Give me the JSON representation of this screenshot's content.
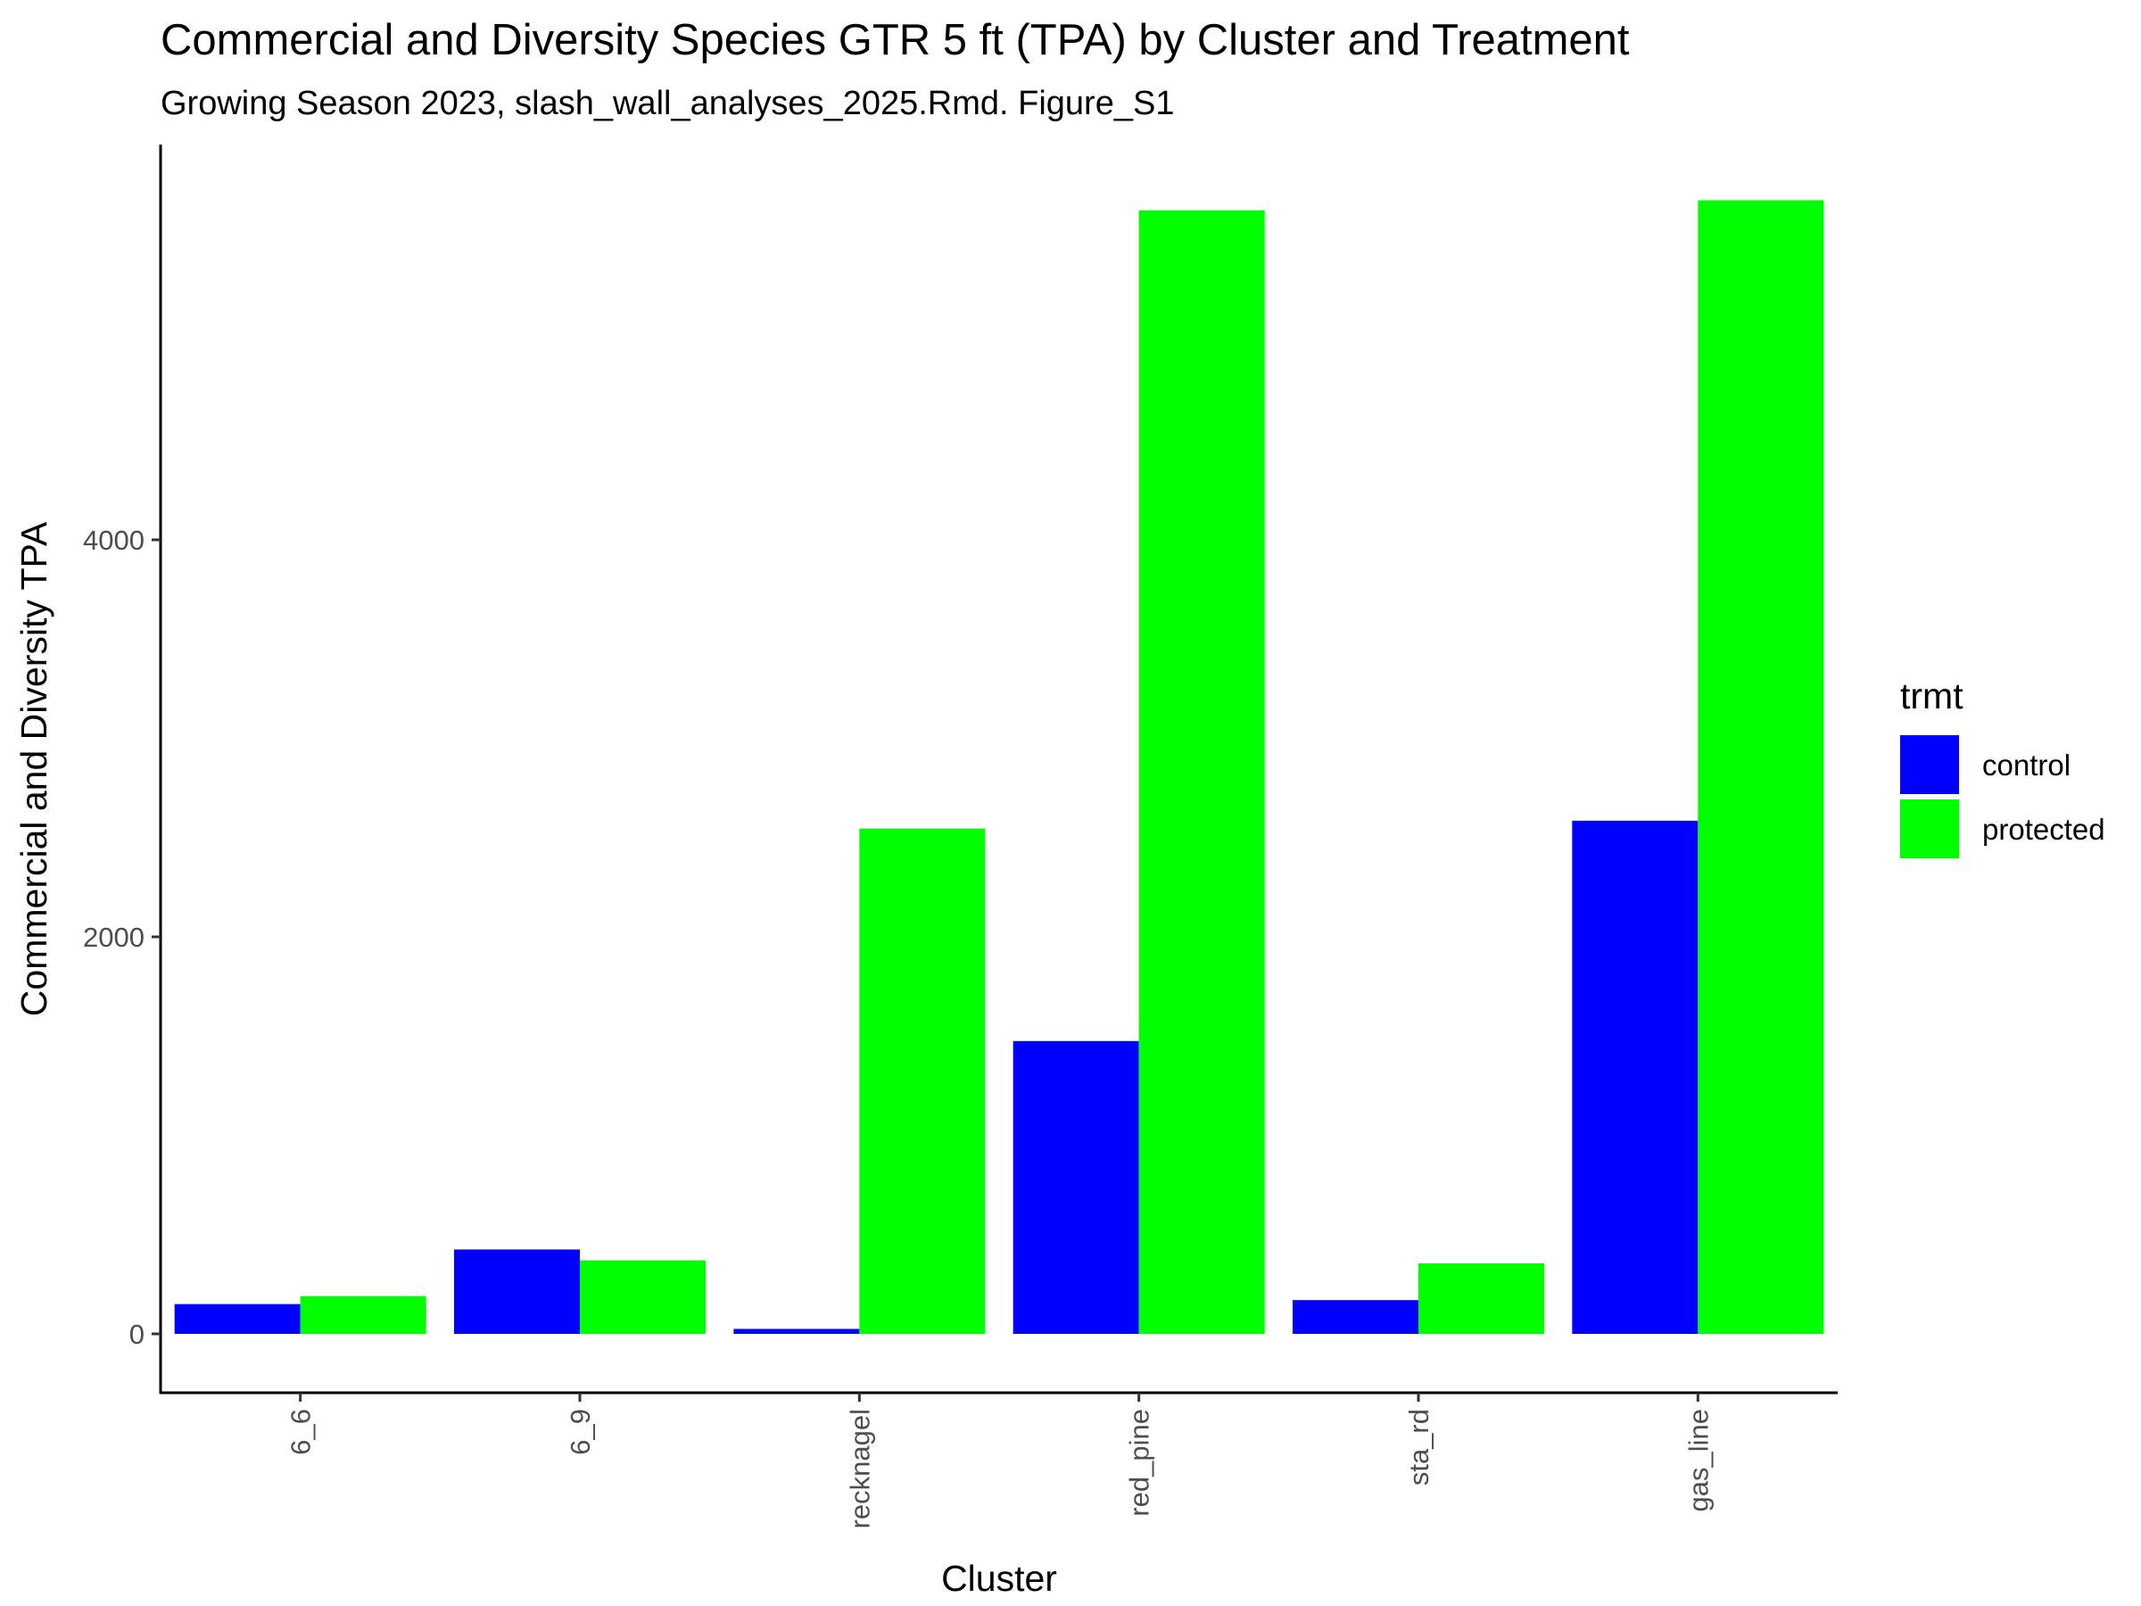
{
  "chart_data": {
    "type": "bar",
    "title": "Commercial and Diversity Species GTR 5 ft (TPA) by Cluster and Treatment",
    "subtitle": "Growing Season 2023, slash_wall_analyses_2025.Rmd. Figure_S1",
    "xlabel": "Cluster",
    "ylabel": "Commercial and Diversity TPA",
    "categories": [
      "6_6",
      "6_9",
      "recknagel",
      "red_pine",
      "sta_rd",
      "gas_line"
    ],
    "series": [
      {
        "name": "control",
        "color": "#0000ff",
        "values": [
          150,
          425,
          25,
          1475,
          170,
          2585
        ]
      },
      {
        "name": "protected",
        "color": "#00ff00",
        "values": [
          190,
          370,
          2545,
          5660,
          355,
          5710
        ]
      }
    ],
    "ylim": [
      -280,
      5920
    ],
    "yticks": [
      0,
      2000,
      4000
    ],
    "legend": {
      "title": "trmt",
      "position": "right"
    },
    "grid": false
  }
}
